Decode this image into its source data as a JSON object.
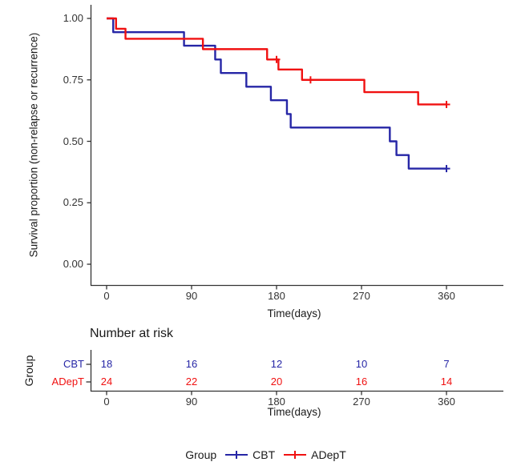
{
  "main_plot": {
    "y_axis_label": "Survival proportion (non-relapse or recurrence)",
    "x_axis_label": "Time(days)"
  },
  "risk_table": {
    "title": "Number at risk",
    "group_axis_label": "Group",
    "x_axis_label": "Time(days)",
    "rows": [
      {
        "name": "CBT",
        "color": "#2626A6",
        "values": [
          "18",
          "16",
          "12",
          "10",
          "7"
        ]
      },
      {
        "name": "ADepT",
        "color": "#F01111",
        "values": [
          "24",
          "22",
          "20",
          "16",
          "14"
        ]
      }
    ]
  },
  "legend": {
    "title": "Group",
    "items": [
      {
        "label": "CBT"
      },
      {
        "label": "ADepT"
      }
    ]
  },
  "colors": {
    "cbt": "#2626A6",
    "adept": "#F01111",
    "axis": "#333333",
    "tick_text": "#333333",
    "title_text": "#1a1a1a"
  },
  "chart_data": {
    "type": "line",
    "subtype": "kaplan-meier-step",
    "title": "",
    "xlabel": "Time(days)",
    "ylabel": "Survival proportion (non-relapse or recurrence)",
    "xlim": [
      0,
      420
    ],
    "ylim": [
      0,
      1
    ],
    "grid": false,
    "legend_position": "bottom",
    "x_ticks": [
      0,
      90,
      180,
      270,
      360
    ],
    "x_tick_labels": [
      "0",
      "90",
      "180",
      "270",
      "360"
    ],
    "y_ticks": [
      1.0,
      0.75,
      0.5,
      0.25,
      0.0
    ],
    "y_tick_labels": [
      "1.00",
      "0.75",
      "0.50",
      "0.25",
      "0.00"
    ],
    "risk_table_times": [
      0,
      90,
      180,
      270,
      360
    ],
    "series": [
      {
        "name": "CBT",
        "color": "#2626A6",
        "step_points": [
          [
            0,
            1.0
          ],
          [
            7,
            0.944
          ],
          [
            82,
            0.889
          ],
          [
            115,
            0.833
          ],
          [
            121,
            0.778
          ],
          [
            148,
            0.722
          ],
          [
            174,
            0.667
          ],
          [
            191,
            0.611
          ],
          [
            195,
            0.556
          ],
          [
            300,
            0.5
          ],
          [
            307,
            0.444
          ],
          [
            320,
            0.389
          ]
        ],
        "end_time": 360,
        "censor_marks": [
          [
            360,
            0.389
          ]
        ],
        "number_at_risk": [
          18,
          16,
          12,
          10,
          7
        ]
      },
      {
        "name": "ADepT",
        "color": "#F01111",
        "step_points": [
          [
            0,
            1.0
          ],
          [
            10,
            0.958
          ],
          [
            20,
            0.917
          ],
          [
            102,
            0.875
          ],
          [
            170,
            0.833
          ],
          [
            182,
            0.792
          ],
          [
            207,
            0.75
          ],
          [
            273,
            0.7
          ],
          [
            330,
            0.65
          ]
        ],
        "end_time": 360,
        "censor_marks": [
          [
            180,
            0.833
          ],
          [
            216,
            0.75
          ],
          [
            360,
            0.65
          ]
        ],
        "number_at_risk": [
          24,
          22,
          20,
          16,
          14
        ]
      }
    ]
  }
}
